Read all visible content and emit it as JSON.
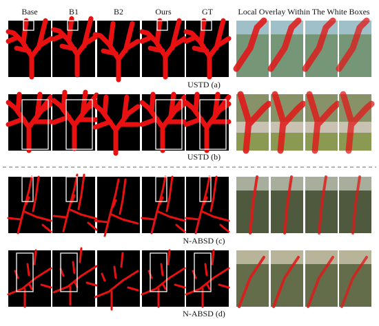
{
  "header": {
    "columns": [
      "Base",
      "B1",
      "B2",
      "Ours",
      "GT"
    ],
    "overlay_title": "Local Overlay Within The White Boxes"
  },
  "rows": [
    {
      "caption": "USTD (a)"
    },
    {
      "caption": "USTD (b)"
    },
    {
      "caption": "N-ABSD (c)"
    },
    {
      "caption": "N-ABSD (d)"
    }
  ]
}
